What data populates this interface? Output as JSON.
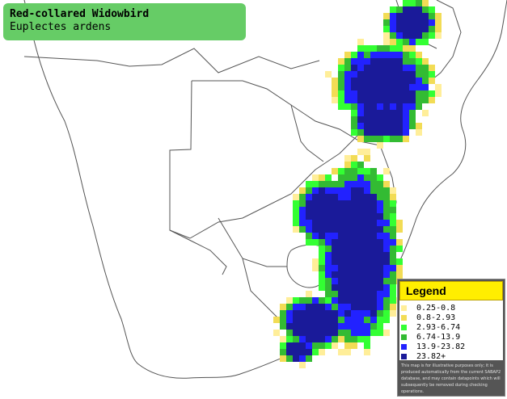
{
  "title": {
    "common_name": "Red-collared Widowbird",
    "scientific_name": "Euplectes ardens"
  },
  "legend": {
    "heading": "Legend",
    "items": [
      {
        "label": "0.25-0.8",
        "color": "#ffee99"
      },
      {
        "label": "0.8-2.93",
        "color": "#f2dc55"
      },
      {
        "label": "2.93-6.74",
        "color": "#33ff33"
      },
      {
        "label": "6.74-13.9",
        "color": "#33bb33"
      },
      {
        "label": "13.9-23.82",
        "color": "#2222ff"
      },
      {
        "label": "23.82+",
        "color": "#1a1a99"
      }
    ],
    "disclaimer": "This map is for illustrative purposes only; it is produced automatically from the current SABAP2 database, and may contain datapoints which will subsequently be removed during checking operations."
  },
  "colors": {
    "border": "#555555",
    "background": "#ffffff",
    "title_box": "#66cc66"
  }
}
